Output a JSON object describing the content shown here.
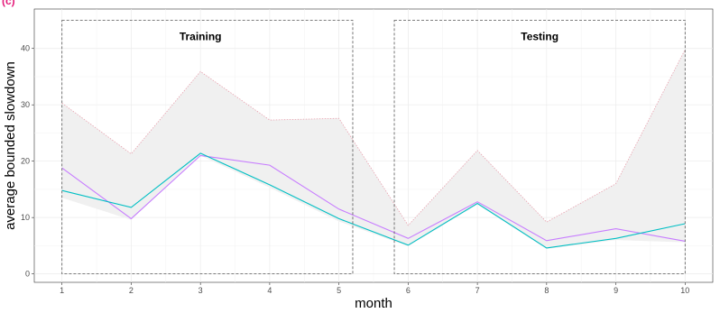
{
  "chart_data": {
    "type": "line",
    "corner_label": "(c)",
    "xlabel": "month",
    "ylabel": "average bounded slowdown",
    "x": [
      1,
      2,
      3,
      4,
      5,
      6,
      7,
      8,
      9,
      10
    ],
    "xlim": [
      0.6,
      10.4
    ],
    "ylim": [
      -1.5,
      47
    ],
    "x_ticks": [
      1,
      2,
      3,
      4,
      5,
      6,
      7,
      8,
      9,
      10
    ],
    "y_ticks": [
      0,
      10,
      20,
      30,
      40
    ],
    "grid": true,
    "series": [
      {
        "values": [
          18.8,
          9.8,
          21.0,
          19.3,
          11.5,
          6.3,
          12.8,
          5.9,
          8.0,
          5.8
        ],
        "color": "#c77cff"
      },
      {
        "values": [
          14.8,
          11.8,
          21.4,
          15.8,
          9.8,
          5.1,
          12.5,
          4.6,
          6.3,
          8.9
        ],
        "color": "#00bfc4"
      }
    ],
    "band": {
      "upper": [
        30.3,
        21.3,
        35.9,
        27.3,
        27.6,
        8.6,
        21.9,
        9.2,
        16.0,
        39.8
      ],
      "lower": [
        13.5,
        9.6,
        21.0,
        15.3,
        9.3,
        4.9,
        12.3,
        4.4,
        6.0,
        5.6
      ],
      "fill": "#f0f0f0",
      "border_color": "#e7a1ae"
    },
    "regions": [
      {
        "label": "Training",
        "x_start": 1,
        "x_end": 5.2,
        "y_start": 0,
        "y_end": 45,
        "label_x": 3,
        "label_y": 41.5
      },
      {
        "label": "Testing",
        "x_start": 5.8,
        "x_end": 10,
        "y_start": 0,
        "y_end": 45,
        "label_x": 7.9,
        "label_y": 41.5
      }
    ]
  }
}
